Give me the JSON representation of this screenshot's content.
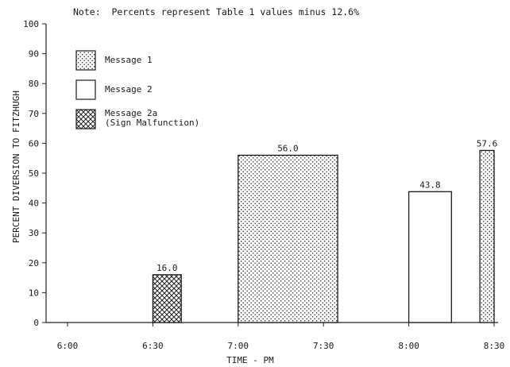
{
  "chart_data": {
    "type": "bar",
    "note": "Note:  Percents represent Table 1 values minus 12.6%",
    "xlabel": "TIME - PM",
    "ylabel": "PERCENT DIVERSION TO FITZHUGH",
    "ylim": [
      0,
      100
    ],
    "yticks": [
      "0",
      "10",
      "20",
      "30",
      "40",
      "50",
      "60",
      "70",
      "80",
      "90",
      "100"
    ],
    "xticks": [
      "6:00",
      "6:30",
      "7:00",
      "7:30",
      "8:00",
      "8:30"
    ],
    "legend_position": "top-left",
    "legend": [
      {
        "key": "m1",
        "label": "Message 1",
        "pattern": "dots"
      },
      {
        "key": "m2",
        "label": "Message 2",
        "pattern": "empty"
      },
      {
        "key": "m2a",
        "label": "Message 2a",
        "label2": "(Sign Malfunction)",
        "pattern": "crosshatch"
      }
    ],
    "bars": [
      {
        "start": "6:30",
        "end": "6:40",
        "value": 16.0,
        "label": "16.0",
        "series": "m2a"
      },
      {
        "start": "7:00",
        "end": "7:35",
        "value": 56.0,
        "label": "56.0",
        "series": "m1"
      },
      {
        "start": "8:00",
        "end": "8:15",
        "value": 43.8,
        "label": "43.8",
        "series": "m2"
      },
      {
        "start": "8:25",
        "end": "8:30",
        "value": 57.6,
        "label": "57.6",
        "series": "m1"
      }
    ]
  }
}
